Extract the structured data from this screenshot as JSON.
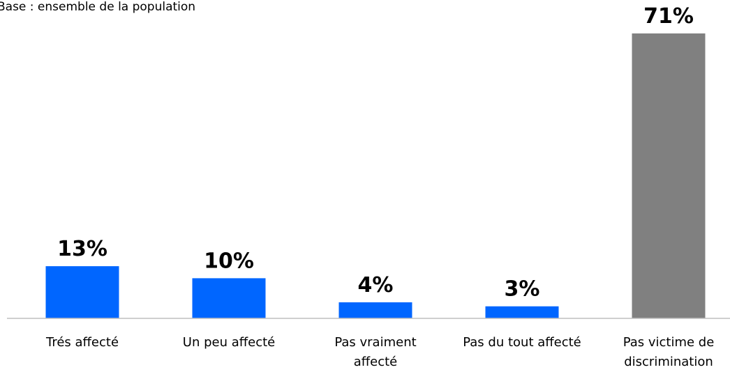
{
  "chart_data": {
    "type": "bar",
    "subtitle": "Base : ensemble de la population",
    "categories": [
      "Trés affecté",
      "Un peu affecté",
      "Pas vraiment affecté",
      "Pas du tout affecté",
      "Pas victime de discrimination"
    ],
    "values": [
      13,
      10,
      4,
      3,
      71
    ],
    "value_labels": [
      "13%",
      "10%",
      "4%",
      "3%",
      "71%"
    ],
    "colors": [
      "#0066ff",
      "#0066ff",
      "#0066ff",
      "#0066ff",
      "#808080"
    ]
  }
}
